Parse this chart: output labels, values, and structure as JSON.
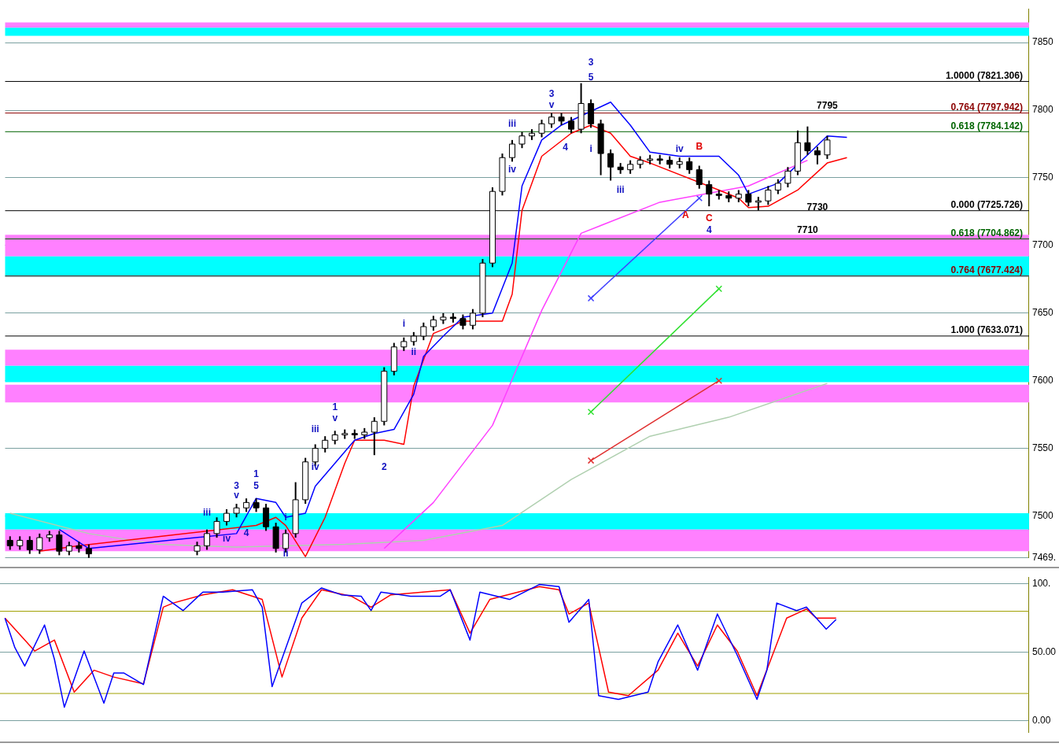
{
  "chart_data": [
    {
      "type": "candlestick",
      "categories": [
        null,
        null,
        null,
        null,
        null,
        null,
        null,
        null,
        null,
        null,
        null,
        null,
        null,
        null,
        null,
        null,
        null,
        null,
        null,
        null,
        null,
        null,
        null,
        null,
        null,
        null,
        null,
        null,
        null,
        null,
        null,
        null,
        null,
        null,
        null,
        null,
        null,
        null,
        null,
        null,
        null,
        null,
        null,
        null,
        null,
        null,
        null,
        null,
        null,
        null,
        null,
        null,
        null,
        null,
        null,
        null,
        null,
        null,
        null,
        null,
        null,
        null,
        null,
        null,
        null,
        null,
        null,
        null,
        null,
        null,
        null,
        null,
        null,
        null,
        null,
        null,
        null,
        null,
        null,
        null,
        null,
        null,
        null,
        null,
        null,
        null,
        null,
        null,
        null,
        null,
        null,
        null,
        null,
        null,
        null,
        null,
        null,
        null,
        null,
        null,
        null,
        null,
        null,
        null
      ],
      "ohlc": [
        [
          7482,
          7485,
          7475,
          7478
        ],
        [
          7478,
          7485,
          7475,
          7482
        ],
        [
          7482,
          7485,
          7472,
          7475
        ],
        [
          7475,
          7487,
          7472,
          7484
        ],
        [
          7484,
          7489,
          7481,
          7486
        ],
        [
          7486,
          7489,
          7471,
          7474
        ],
        [
          7474,
          7481,
          7471,
          7478
        ],
        [
          7478,
          7481,
          7473,
          7476
        ],
        [
          7476,
          7479,
          7469,
          7472
        ],
        null,
        null,
        null,
        null,
        null,
        null,
        null,
        null,
        null,
        null,
        [
          7474,
          7481,
          7471,
          7478
        ],
        [
          7478,
          7490,
          7475,
          7487
        ],
        [
          7487,
          7499,
          7484,
          7496
        ],
        [
          7496,
          7505,
          7493,
          7502
        ],
        [
          7502,
          7509,
          7499,
          7506
        ],
        [
          7506,
          7513,
          7503,
          7510
        ],
        [
          7510,
          7513,
          7503,
          7506
        ],
        [
          7506,
          7509,
          7489,
          7492
        ],
        [
          7492,
          7495,
          7473,
          7476
        ],
        [
          7476,
          7490,
          7473,
          7487
        ],
        [
          7487,
          7525,
          7484,
          7512
        ],
        [
          7512,
          7543,
          7509,
          7540
        ],
        [
          7540,
          7553,
          7537,
          7550
        ],
        [
          7550,
          7559,
          7547,
          7556
        ],
        [
          7556,
          7563,
          7553,
          7560
        ],
        [
          7560,
          7564,
          7557,
          7561
        ],
        [
          7561,
          7564,
          7557,
          7560
        ],
        [
          7560,
          7565,
          7557,
          7562
        ],
        [
          7562,
          7573,
          7545,
          7570
        ],
        [
          7570,
          7610,
          7567,
          7607
        ],
        [
          7607,
          7628,
          7604,
          7625
        ],
        [
          7625,
          7632,
          7622,
          7629
        ],
        [
          7629,
          7636,
          7626,
          7633
        ],
        [
          7633,
          7643,
          7630,
          7640
        ],
        [
          7640,
          7648,
          7637,
          7645
        ],
        [
          7645,
          7650,
          7642,
          7647
        ],
        [
          7647,
          7650,
          7643,
          7646
        ],
        [
          7646,
          7649,
          7638,
          7641
        ],
        [
          7641,
          7653,
          7638,
          7650
        ],
        [
          7650,
          7690,
          7647,
          7687
        ],
        [
          7687,
          7743,
          7684,
          7740
        ],
        [
          7740,
          7768,
          7737,
          7765
        ],
        [
          7765,
          7778,
          7762,
          7775
        ],
        [
          7775,
          7784,
          7772,
          7781
        ],
        [
          7781,
          7786,
          7778,
          7783
        ],
        [
          7783,
          7793,
          7780,
          7790
        ],
        [
          7790,
          7798,
          7787,
          7795
        ],
        [
          7795,
          7798,
          7789,
          7792
        ],
        [
          7792,
          7795,
          7783,
          7786
        ],
        [
          7786,
          7820,
          7783,
          7805
        ],
        [
          7805,
          7808,
          7787,
          7790
        ],
        [
          7790,
          7793,
          7752,
          7768
        ],
        [
          7768,
          7771,
          7748,
          7758
        ],
        [
          7758,
          7761,
          7753,
          7756
        ],
        [
          7756,
          7763,
          7753,
          7760
        ],
        [
          7760,
          7766,
          7757,
          7763
        ],
        [
          7763,
          7767,
          7760,
          7764
        ],
        [
          7764,
          7767,
          7760,
          7763
        ],
        [
          7763,
          7766,
          7757,
          7760
        ],
        [
          7760,
          7765,
          7757,
          7762
        ],
        [
          7762,
          7765,
          7753,
          7756
        ],
        [
          7756,
          7759,
          7742,
          7745
        ],
        [
          7745,
          7748,
          7729,
          7738
        ],
        [
          7738,
          7741,
          7734,
          7737
        ],
        [
          7737,
          7740,
          7732,
          7735
        ],
        [
          7735,
          7741,
          7732,
          7738
        ],
        [
          7738,
          7741,
          7729,
          7732
        ],
        [
          7732,
          7736,
          7726,
          7733
        ],
        [
          7733,
          7744,
          7730,
          7741
        ],
        [
          7741,
          7749,
          7738,
          7746
        ],
        [
          7746,
          7758,
          7743,
          7755
        ],
        [
          7755,
          7785,
          7752,
          7776
        ],
        [
          7776,
          7788,
          7767,
          7770
        ],
        [
          7770,
          7773,
          7760,
          7767
        ],
        [
          7767,
          7781,
          7764,
          7778
        ],
        null,
        null,
        null,
        null,
        null,
        null,
        null,
        null,
        null,
        null,
        null,
        null,
        null,
        null,
        null,
        null,
        null,
        null,
        null,
        null
      ],
      "series": [
        {
          "type": "line",
          "color": "#0000ff",
          "values": [
            null,
            null,
            null,
            null,
            null,
            7490,
            null,
            null,
            7476,
            null,
            null,
            null,
            null,
            null,
            null,
            null,
            null,
            null,
            null,
            null,
            null,
            null,
            null,
            7487,
            null,
            7513,
            null,
            7510,
            7499,
            null,
            7502,
            7522,
            null,
            7539,
            null,
            7556,
            null,
            7561,
            null,
            7564,
            null,
            7590,
            7618,
            null,
            7633,
            null,
            7647,
            null,
            null,
            7650,
            null,
            7687,
            7744,
            null,
            7778,
            null,
            7789,
            null,
            null,
            null,
            null,
            7806,
            null,
            7789,
            null,
            7769,
            null,
            null,
            7766,
            null,
            null,
            null,
            7766,
            null,
            7752,
            7738,
            null,
            null,
            7746,
            null,
            null,
            null,
            null,
            7781,
            null,
            7780,
            null,
            null,
            null,
            null,
            null,
            null,
            null,
            null,
            null,
            null,
            null,
            null,
            null,
            null,
            null,
            null,
            null,
            null
          ]
        },
        {
          "type": "line",
          "color": "#ff0000",
          "values": [
            null,
            null,
            null,
            7474,
            null,
            null,
            null,
            7478,
            null,
            null,
            null,
            null,
            null,
            null,
            null,
            null,
            null,
            null,
            null,
            null,
            null,
            null,
            null,
            null,
            null,
            7493,
            null,
            7499,
            7493,
            null,
            7470,
            null,
            7499,
            null,
            7539,
            7556,
            null,
            null,
            7556,
            null,
            7553,
            7596,
            null,
            7635,
            null,
            null,
            7644,
            null,
            null,
            null,
            7644,
            7664,
            7726,
            null,
            7766,
            null,
            null,
            7783,
            null,
            7789,
            null,
            7783,
            null,
            7766,
            null,
            7761,
            null,
            null,
            null,
            null,
            null,
            null,
            7741,
            null,
            7735,
            7728,
            null,
            7729,
            null,
            null,
            7741,
            null,
            null,
            7761,
            null,
            7765,
            null,
            null,
            null,
            null,
            null,
            null,
            null,
            null,
            null,
            null,
            null,
            null,
            null,
            null,
            null,
            null,
            null,
            null
          ]
        },
        {
          "type": "line",
          "color": "#ff40ff",
          "values": [
            null,
            null,
            null,
            null,
            null,
            null,
            null,
            null,
            null,
            null,
            null,
            null,
            null,
            null,
            null,
            null,
            null,
            null,
            null,
            null,
            null,
            null,
            null,
            null,
            null,
            null,
            null,
            null,
            null,
            null,
            null,
            null,
            null,
            null,
            null,
            null,
            null,
            null,
            7476,
            null,
            null,
            null,
            null,
            7510,
            null,
            null,
            null,
            null,
            null,
            7567,
            null,
            null,
            null,
            null,
            7652,
            null,
            null,
            null,
            7709,
            null,
            null,
            null,
            null,
            null,
            null,
            null,
            7732,
            null,
            null,
            null,
            null,
            null,
            null,
            null,
            null,
            7744,
            null,
            null,
            null,
            null,
            null,
            7763,
            null,
            null,
            null,
            null,
            null,
            null,
            null,
            null,
            null,
            null,
            null,
            null,
            null,
            null,
            null,
            null,
            null,
            null,
            null,
            null,
            null,
            null
          ]
        },
        {
          "type": "line",
          "color": "#b0d0b0",
          "values": [
            7502,
            null,
            null,
            null,
            null,
            null,
            null,
            null,
            7487,
            null,
            null,
            null,
            null,
            null,
            null,
            7479,
            null,
            null,
            null,
            null,
            null,
            null,
            null,
            7477,
            null,
            null,
            null,
            null,
            null,
            null,
            null,
            null,
            null,
            null,
            7479,
            null,
            null,
            null,
            null,
            null,
            null,
            null,
            7482,
            null,
            null,
            null,
            null,
            null,
            null,
            null,
            7493,
            null,
            null,
            null,
            null,
            null,
            null,
            7527,
            null,
            null,
            null,
            null,
            null,
            null,
            null,
            7559,
            null,
            null,
            null,
            null,
            null,
            null,
            null,
            7573,
            null,
            null,
            null,
            null,
            null,
            null,
            null,
            null,
            null,
            7598,
            null,
            null,
            null,
            null,
            null,
            null,
            null,
            null,
            null,
            null,
            null,
            null,
            null,
            null,
            null,
            null,
            null,
            null,
            null,
            null
          ]
        },
        {
          "type": "line",
          "color": "#4040ff",
          "marker": "cross",
          "values": [
            null,
            null,
            null,
            null,
            null,
            null,
            null,
            null,
            null,
            null,
            null,
            null,
            null,
            null,
            null,
            null,
            null,
            null,
            null,
            null,
            null,
            null,
            null,
            null,
            null,
            null,
            null,
            null,
            null,
            null,
            null,
            null,
            null,
            null,
            null,
            null,
            null,
            null,
            null,
            null,
            null,
            null,
            null,
            null,
            null,
            null,
            null,
            null,
            null,
            null,
            null,
            null,
            null,
            null,
            null,
            null,
            null,
            null,
            null,
            7661,
            null,
            null,
            null,
            null,
            null,
            null,
            null,
            null,
            null,
            null,
            7735,
            null,
            null,
            null,
            null,
            null,
            null,
            null,
            null,
            null,
            null,
            null,
            null,
            null,
            null,
            null,
            null,
            null,
            null,
            null,
            null,
            null,
            null,
            null,
            null,
            null,
            null,
            null,
            null,
            null,
            null,
            null,
            null,
            null
          ]
        },
        {
          "type": "line",
          "color": "#30e030",
          "marker": "cross",
          "values": [
            null,
            null,
            null,
            null,
            null,
            null,
            null,
            null,
            null,
            null,
            null,
            null,
            null,
            null,
            null,
            null,
            null,
            null,
            null,
            null,
            null,
            null,
            null,
            null,
            null,
            null,
            null,
            null,
            null,
            null,
            null,
            null,
            null,
            null,
            null,
            null,
            null,
            null,
            null,
            null,
            null,
            null,
            null,
            null,
            null,
            null,
            null,
            null,
            null,
            null,
            null,
            null,
            null,
            null,
            null,
            null,
            null,
            null,
            null,
            7577,
            null,
            null,
            null,
            null,
            null,
            null,
            null,
            null,
            null,
            null,
            null,
            null,
            7668,
            null,
            null,
            null,
            null,
            null,
            null,
            null,
            null,
            null,
            null,
            null,
            null,
            null,
            null,
            null,
            null,
            null,
            null,
            null,
            null,
            null,
            null,
            null,
            null,
            null,
            null,
            null,
            null,
            null,
            null,
            null
          ]
        },
        {
          "type": "line",
          "color": "#e03030",
          "marker": "cross",
          "values": [
            null,
            null,
            null,
            null,
            null,
            null,
            null,
            null,
            null,
            null,
            null,
            null,
            null,
            null,
            null,
            null,
            null,
            null,
            null,
            null,
            null,
            null,
            null,
            null,
            null,
            null,
            null,
            null,
            null,
            null,
            null,
            null,
            null,
            null,
            null,
            null,
            null,
            null,
            null,
            null,
            null,
            null,
            null,
            null,
            null,
            null,
            null,
            null,
            null,
            null,
            null,
            null,
            null,
            null,
            null,
            null,
            null,
            null,
            null,
            7541,
            null,
            null,
            null,
            null,
            null,
            null,
            null,
            null,
            null,
            null,
            null,
            null,
            7600,
            null,
            null,
            null,
            null,
            null,
            null,
            null,
            null,
            null,
            null,
            null,
            null,
            null,
            null,
            null,
            null,
            null,
            null,
            null,
            null,
            null,
            null,
            null,
            null,
            null,
            null,
            null,
            null,
            null,
            null,
            null
          ]
        }
      ],
      "ylim": [
        7469,
        7875
      ],
      "yticks": [
        {
          "value": 7469,
          "label": "7469."
        },
        7500,
        7550,
        7600,
        7650,
        7700,
        7750,
        7800,
        7850
      ],
      "tick_labels": "y",
      "grid": "y",
      "bands": [
        {
          "axis": "y",
          "from": 7692,
          "to": 7708,
          "color": "#ff80ff"
        },
        {
          "axis": "y",
          "from": 7677,
          "to": 7692,
          "color": "#00ffff"
        },
        {
          "axis": "y",
          "from": 7611,
          "to": 7623,
          "color": "#ff80ff"
        },
        {
          "axis": "y",
          "from": 7599,
          "to": 7611,
          "color": "#00ffff"
        },
        {
          "axis": "y",
          "from": 7584,
          "to": 7597,
          "color": "#ff80ff"
        },
        {
          "axis": "y",
          "from": 7490,
          "to": 7502,
          "color": "#00ffff"
        },
        {
          "axis": "y",
          "from": 7474,
          "to": 7490,
          "color": "#ff80ff"
        },
        {
          "axis": "y",
          "from": 7861,
          "to": 7865,
          "color": "#ff80ff"
        },
        {
          "axis": "y",
          "from": 7855,
          "to": 7861,
          "color": "#00ffff"
        }
      ],
      "ref_lines": [
        {
          "axis": "y",
          "value": 7821.306,
          "label": "1.0000 (7821.306)",
          "color": "#000000"
        },
        {
          "axis": "y",
          "value": 7797.942,
          "label": "0.764 (7797.942)",
          "color": "#8b0000"
        },
        {
          "axis": "y",
          "value": 7784.142,
          "label": "0.618 (7784.142)",
          "color": "#006400"
        },
        {
          "axis": "y",
          "value": 7725.726,
          "label": "0.000 (7725.726)",
          "color": "#000000"
        },
        {
          "axis": "y",
          "value": 7704.862,
          "label": "0.618 (7704.862)",
          "color": "#006400"
        },
        {
          "axis": "y",
          "value": 7677.424,
          "label": "0.764 (7677.424)",
          "color": "#8b0000"
        },
        {
          "axis": "y",
          "value": 7633.071,
          "label": "1.000 (7633.071)",
          "color": "#000000"
        }
      ],
      "annotations": [
        "3",
        "5",
        "3",
        "v",
        "iii",
        "iv",
        "4",
        "i",
        "iii",
        "iv",
        "B",
        "A",
        "C",
        "4",
        "7795",
        "7730",
        "7710",
        "1",
        "5",
        "3",
        "v",
        "iii",
        "iv",
        "4",
        "i",
        "ii",
        "1",
        "v",
        "iii",
        "iv",
        "2",
        "i",
        "ii"
      ]
    },
    {
      "type": "line",
      "categories": [
        null,
        null,
        null,
        null,
        null,
        null,
        null,
        null,
        null,
        null,
        null,
        null,
        null,
        null,
        null,
        null,
        null,
        null,
        null,
        null,
        null,
        null,
        null,
        null,
        null,
        null,
        null,
        null,
        null,
        null,
        null,
        null,
        null,
        null,
        null,
        null,
        null,
        null,
        null,
        null,
        null,
        null,
        null,
        null,
        null,
        null,
        null,
        null,
        null,
        null,
        null,
        null,
        null,
        null,
        null,
        null,
        null,
        null,
        null,
        null,
        null,
        null,
        null,
        null,
        null,
        null,
        null,
        null,
        null,
        null,
        null,
        null,
        null,
        null,
        null,
        null,
        null,
        null,
        null,
        null,
        null,
        null,
        null,
        null,
        null,
        null,
        null,
        null,
        null,
        null,
        null,
        null,
        null,
        null,
        null,
        null,
        null,
        null,
        null,
        null,
        null,
        null,
        null,
        null
      ],
      "series": [
        {
          "color": "#0000ff",
          "values": [
            75,
            53.5,
            40,
            null,
            70,
            45,
            10,
            null,
            51,
            null,
            13,
            35,
            35,
            null,
            26.5,
            null,
            91,
            null,
            80.5,
            null,
            94,
            null,
            94,
            null,
            null,
            95.7,
            83,
            25,
            null,
            null,
            86,
            null,
            97,
            null,
            92,
            null,
            91,
            80.5,
            94,
            null,
            null,
            91,
            null,
            null,
            91,
            95.7,
            null,
            59,
            94,
            null,
            null,
            88.6,
            null,
            null,
            99.5,
            null,
            98,
            72,
            null,
            88.6,
            18.4,
            null,
            15.7,
            null,
            null,
            21,
            43,
            null,
            70,
            null,
            37,
            null,
            78,
            null,
            48,
            null,
            15.7,
            37,
            86,
            null,
            80.5,
            83,
            null,
            67,
            74,
            null,
            null,
            null,
            null,
            null,
            null,
            null,
            null,
            null,
            null,
            null,
            null,
            null,
            null,
            null,
            null,
            null,
            null,
            null
          ]
        },
        {
          "color": "#ff0000",
          "values": [
            75,
            null,
            59,
            51,
            null,
            59,
            null,
            21,
            null,
            37,
            null,
            32,
            null,
            null,
            27,
            null,
            83,
            86,
            null,
            null,
            92,
            null,
            null,
            95.7,
            null,
            null,
            88.6,
            null,
            32,
            null,
            75,
            null,
            95.7,
            null,
            null,
            91,
            null,
            83,
            null,
            92,
            null,
            null,
            null,
            null,
            null,
            95.7,
            null,
            64,
            null,
            88.6,
            null,
            null,
            null,
            null,
            98,
            null,
            95.7,
            78,
            null,
            86,
            null,
            21,
            null,
            18.4,
            null,
            null,
            37,
            null,
            64,
            null,
            40,
            null,
            70,
            null,
            51,
            null,
            18.4,
            null,
            null,
            75,
            null,
            81.6,
            75,
            null,
            75,
            null,
            null,
            null,
            null,
            null,
            null,
            null,
            null,
            null,
            null,
            null,
            null,
            null,
            null,
            null,
            null,
            null,
            null,
            null
          ]
        }
      ],
      "ylim": [
        -8.6,
        104.9
      ],
      "yticks": [
        {
          "value": 100,
          "label": "100."
        },
        {
          "value": 50,
          "label": "50.00"
        },
        {
          "value": 0,
          "label": "0.00"
        }
      ],
      "tick_labels": "y",
      "grid": "y",
      "ref_lines": [
        {
          "axis": "y",
          "value": 80,
          "color": "#a0a000"
        },
        {
          "axis": "y",
          "value": 20,
          "color": "#a0a000"
        }
      ]
    }
  ]
}
